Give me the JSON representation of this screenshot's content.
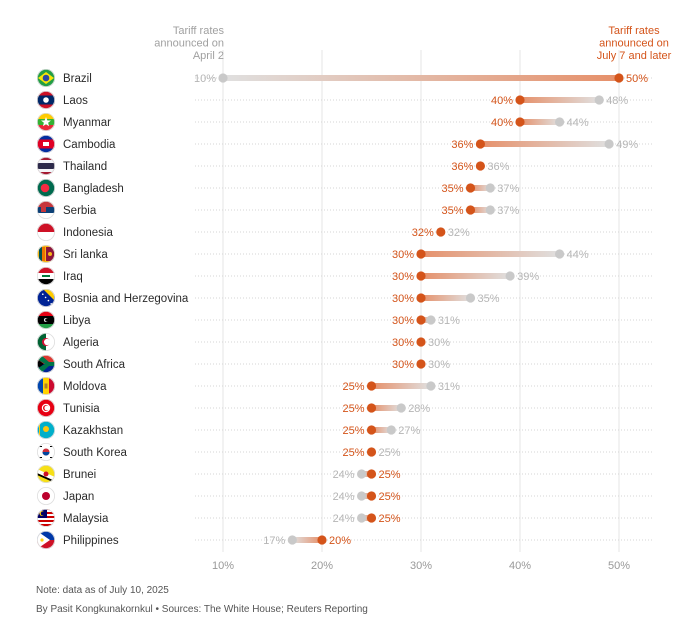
{
  "chart_data": {
    "type": "dumbbell",
    "title": "",
    "header_left": [
      "Tariff rates",
      "announced on",
      "April 2"
    ],
    "header_right": [
      "Tariff rates",
      "announced on",
      "July 7 and later"
    ],
    "xlim": [
      10,
      50
    ],
    "xticks": [
      10,
      20,
      30,
      40,
      50
    ],
    "xtick_labels": [
      "10%",
      "20%",
      "30%",
      "40%",
      "50%"
    ],
    "grid": true,
    "series": [
      {
        "name": "April 2",
        "color": "#c9c9c9"
      },
      {
        "name": "July 7 and later",
        "color": "#d4541a"
      }
    ],
    "rows": [
      {
        "country": "Brazil",
        "flag": "brazil-flag",
        "april": 10,
        "july": 50
      },
      {
        "country": "Laos",
        "flag": "laos-flag",
        "april": 48,
        "july": 40
      },
      {
        "country": "Myanmar",
        "flag": "myanmar-flag",
        "april": 44,
        "july": 40
      },
      {
        "country": "Cambodia",
        "flag": "cambodia-flag",
        "april": 49,
        "july": 36
      },
      {
        "country": "Thailand",
        "flag": "thailand-flag",
        "april": 36,
        "july": 36
      },
      {
        "country": "Bangladesh",
        "flag": "bangladesh-flag",
        "april": 37,
        "july": 35
      },
      {
        "country": "Serbia",
        "flag": "serbia-flag",
        "april": 37,
        "july": 35
      },
      {
        "country": "Indonesia",
        "flag": "indonesia-flag",
        "april": 32,
        "july": 32
      },
      {
        "country": "Sri lanka",
        "flag": "sri-lanka-flag",
        "april": 44,
        "july": 30
      },
      {
        "country": "Iraq",
        "flag": "iraq-flag",
        "april": 39,
        "july": 30
      },
      {
        "country": "Bosnia and Herzegovina",
        "flag": "bosnia-flag",
        "april": 35,
        "july": 30
      },
      {
        "country": "Libya",
        "flag": "libya-flag",
        "april": 31,
        "july": 30
      },
      {
        "country": "Algeria",
        "flag": "algeria-flag",
        "april": 30,
        "july": 30
      },
      {
        "country": "South Africa",
        "flag": "south-africa-flag",
        "april": 30,
        "july": 30
      },
      {
        "country": "Moldova",
        "flag": "moldova-flag",
        "april": 31,
        "july": 25
      },
      {
        "country": "Tunisia",
        "flag": "tunisia-flag",
        "april": 28,
        "july": 25
      },
      {
        "country": "Kazakhstan",
        "flag": "kazakhstan-flag",
        "april": 27,
        "july": 25
      },
      {
        "country": "South Korea",
        "flag": "south-korea-flag",
        "april": 25,
        "july": 25
      },
      {
        "country": "Brunei",
        "flag": "brunei-flag",
        "april": 24,
        "july": 25
      },
      {
        "country": "Japan",
        "flag": "japan-flag",
        "april": 24,
        "july": 25
      },
      {
        "country": "Malaysia",
        "flag": "malaysia-flag",
        "april": 24,
        "july": 25
      },
      {
        "country": "Philippines",
        "flag": "philippines-flag",
        "april": 17,
        "july": 20
      }
    ]
  },
  "footer": {
    "note": "Note: data as of July 10, 2025",
    "byline": "By Pasit Kongkunakornkul • Sources: The White House; Reuters Reporting"
  }
}
